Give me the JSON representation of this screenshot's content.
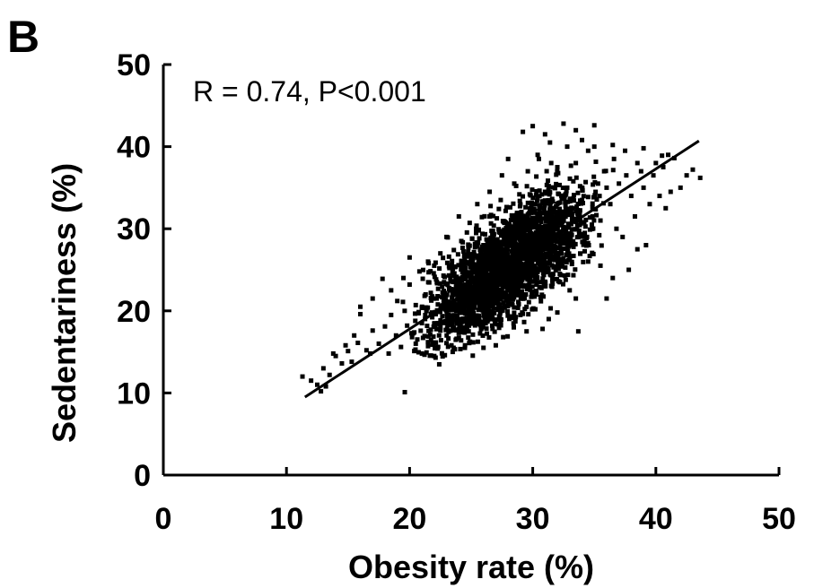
{
  "panel_label": "B",
  "chart_data": {
    "type": "scatter",
    "title": "",
    "xlabel": "Obesity rate (%)",
    "ylabel": "Sedentariness (%)",
    "xlim": [
      0,
      50
    ],
    "ylim": [
      0,
      50
    ],
    "xticks": [
      0,
      10,
      20,
      30,
      40,
      50
    ],
    "yticks": [
      0,
      10,
      20,
      30,
      40,
      50
    ],
    "grid": false,
    "annotation": "R = 0.74, P<0.001",
    "trendline": {
      "x": [
        11.5,
        43.5
      ],
      "y": [
        9.5,
        40.7
      ]
    },
    "points": [
      [
        11.3,
        12.0
      ],
      [
        12.5,
        11.0
      ],
      [
        12.8,
        10.2
      ],
      [
        13.0,
        13.0
      ],
      [
        13.5,
        12.2
      ],
      [
        14.0,
        14.5
      ],
      [
        14.5,
        13.6
      ],
      [
        15.0,
        15.1
      ],
      [
        15.3,
        13.8
      ],
      [
        15.8,
        16.1
      ],
      [
        16.0,
        19.6
      ],
      [
        16.5,
        15.2
      ],
      [
        17.0,
        17.6
      ],
      [
        17.5,
        16.0
      ],
      [
        17.8,
        23.9
      ],
      [
        18.0,
        18.1
      ],
      [
        18.3,
        14.8
      ],
      [
        18.5,
        19.5
      ],
      [
        18.9,
        17.0
      ],
      [
        19.0,
        21.2
      ],
      [
        19.3,
        15.6
      ],
      [
        19.6,
        20.0
      ],
      [
        19.8,
        18.2
      ],
      [
        20.0,
        23.2
      ],
      [
        20.2,
        16.8
      ],
      [
        20.5,
        20.7
      ],
      [
        20.8,
        24.8
      ],
      [
        21.0,
        18.5
      ],
      [
        21.3,
        22.0
      ],
      [
        21.5,
        15.7
      ],
      [
        21.8,
        19.8
      ],
      [
        22.0,
        25.5
      ],
      [
        22.2,
        21.5
      ],
      [
        22.5,
        17.6
      ],
      [
        22.8,
        23.5
      ],
      [
        23.0,
        20.0
      ],
      [
        23.2,
        26.6
      ],
      [
        23.4,
        15.8
      ],
      [
        23.6,
        22.3
      ],
      [
        24.0,
        19.0
      ],
      [
        24.2,
        28.5
      ],
      [
        24.5,
        24.5
      ],
      [
        24.8,
        17.5
      ],
      [
        25.0,
        26.5
      ],
      [
        25.2,
        21.3
      ],
      [
        25.4,
        30.0
      ],
      [
        25.6,
        23.0
      ],
      [
        25.8,
        18.5
      ],
      [
        26.0,
        28.0
      ],
      [
        26.3,
        25.0
      ],
      [
        26.5,
        31.5
      ],
      [
        26.7,
        20.5
      ],
      [
        27.0,
        27.0
      ],
      [
        27.2,
        24.0
      ],
      [
        27.4,
        33.5
      ],
      [
        27.6,
        16.8
      ],
      [
        27.8,
        29.5
      ],
      [
        28.0,
        22.5
      ],
      [
        28.3,
        26.0
      ],
      [
        28.5,
        35.5
      ],
      [
        28.7,
        31.0
      ],
      [
        29.0,
        19.5
      ],
      [
        29.2,
        28.5
      ],
      [
        29.4,
        24.0
      ],
      [
        29.6,
        37.0
      ],
      [
        29.8,
        32.5
      ],
      [
        30.0,
        26.5
      ],
      [
        30.3,
        22.0
      ],
      [
        30.5,
        38.5
      ],
      [
        30.7,
        30.0
      ],
      [
        31.0,
        34.5
      ],
      [
        31.2,
        27.5
      ],
      [
        31.4,
        40.5
      ],
      [
        31.6,
        24.0
      ],
      [
        31.8,
        32.0
      ],
      [
        32.0,
        37.5
      ],
      [
        32.3,
        29.0
      ],
      [
        32.5,
        42.8
      ],
      [
        32.8,
        35.0
      ],
      [
        33.0,
        26.5
      ],
      [
        33.2,
        31.5
      ],
      [
        33.5,
        38.0
      ],
      [
        33.7,
        17.5
      ],
      [
        34.0,
        33.5
      ],
      [
        34.2,
        28.5
      ],
      [
        34.5,
        39.5
      ],
      [
        34.8,
        30.5
      ],
      [
        35.0,
        42.6
      ],
      [
        35.3,
        35.5
      ],
      [
        35.5,
        31.0
      ],
      [
        35.8,
        37.0
      ],
      [
        36.0,
        21.5
      ],
      [
        36.3,
        33.0
      ],
      [
        36.6,
        38.5
      ],
      [
        36.8,
        30.0
      ],
      [
        37.0,
        35.5
      ],
      [
        37.3,
        29.0
      ],
      [
        37.6,
        36.5
      ],
      [
        38.0,
        34.0
      ],
      [
        38.3,
        31.5
      ],
      [
        38.5,
        27.5
      ],
      [
        38.8,
        37.0
      ],
      [
        39.0,
        35.0
      ],
      [
        39.5,
        33.0
      ],
      [
        39.8,
        36.5
      ],
      [
        40.0,
        38.0
      ],
      [
        40.3,
        34.0
      ],
      [
        40.6,
        37.5
      ],
      [
        40.8,
        32.5
      ],
      [
        41.0,
        39.0
      ],
      [
        41.2,
        34.5
      ],
      [
        42.0,
        35.0
      ],
      [
        42.5,
        36.5
      ],
      [
        43.0,
        37.2
      ],
      [
        43.6,
        36.2
      ],
      [
        41.5,
        38.6
      ],
      [
        40.5,
        38.9
      ],
      [
        36.0,
        35.0
      ],
      [
        30.4,
        39.0
      ],
      [
        29.2,
        41.8
      ],
      [
        30.0,
        42.5
      ],
      [
        31.0,
        41.5
      ],
      [
        33.0,
        22.5
      ],
      [
        34.5,
        26.0
      ],
      [
        35.5,
        25.5
      ],
      [
        37.8,
        25.0
      ],
      [
        39.2,
        28.0
      ],
      [
        36.5,
        24.0
      ],
      [
        33.5,
        21.5
      ],
      [
        32.0,
        19.8
      ],
      [
        31.3,
        19.0
      ],
      [
        30.8,
        17.8
      ],
      [
        29.5,
        17.5
      ],
      [
        27.0,
        15.8
      ],
      [
        26.0,
        15.5
      ],
      [
        24.5,
        15.8
      ],
      [
        23.5,
        15.0
      ],
      [
        22.0,
        14.5
      ],
      [
        25.5,
        33.0
      ],
      [
        24.0,
        31.5
      ],
      [
        23.0,
        29.0
      ],
      [
        22.5,
        27.0
      ],
      [
        21.5,
        26.0
      ],
      [
        20.0,
        26.5
      ],
      [
        18.5,
        22.5
      ],
      [
        17.0,
        21.5
      ],
      [
        16.0,
        20.5
      ],
      [
        19.5,
        24.0
      ],
      [
        26.5,
        34.5
      ],
      [
        27.5,
        36.5
      ],
      [
        28.0,
        38.5
      ],
      [
        33.5,
        42.0
      ],
      [
        34.0,
        40.8
      ],
      [
        35.0,
        40.0
      ],
      [
        37.5,
        39.5
      ],
      [
        38.5,
        38.0
      ],
      [
        39.0,
        39.8
      ],
      [
        36.5,
        40.2
      ],
      [
        32.8,
        40.0
      ],
      [
        31.5,
        38.0
      ],
      [
        14.8,
        15.8
      ],
      [
        15.5,
        17.0
      ],
      [
        13.8,
        14.8
      ],
      [
        12.0,
        11.5
      ],
      [
        13.2,
        10.8
      ],
      [
        16.8,
        14.8
      ],
      [
        20.5,
        16.0
      ],
      [
        21.0,
        14.8
      ]
    ]
  }
}
